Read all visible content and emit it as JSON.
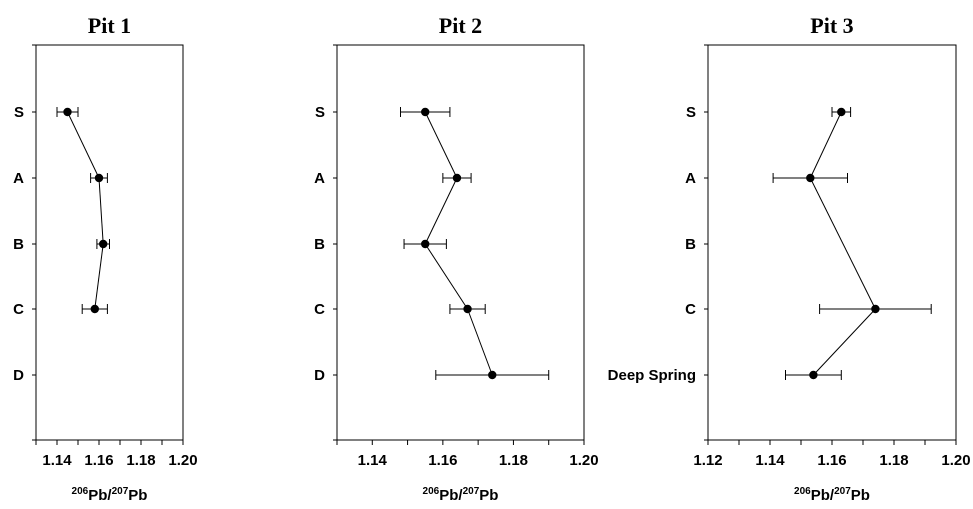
{
  "chart_data": [
    {
      "type": "scatter",
      "title": "Pit 1",
      "xlabel": {
        "sup1": "206",
        "base1": "Pb/",
        "sup2": "207",
        "base2": "Pb"
      },
      "xlim": [
        1.13,
        1.2
      ],
      "xticks": [
        "1.14",
        "1.16",
        "1.18",
        "1.20"
      ],
      "categories": [
        "S",
        "A",
        "B",
        "C",
        "D"
      ],
      "series": [
        {
          "points": [
            {
              "category": "S",
              "x": 1.145,
              "err": 0.005
            },
            {
              "category": "A",
              "x": 1.16,
              "err": 0.004
            },
            {
              "category": "B",
              "x": 1.162,
              "err": 0.003
            },
            {
              "category": "C",
              "x": 1.158,
              "err": 0.006
            }
          ]
        }
      ]
    },
    {
      "type": "scatter",
      "title": "Pit 2",
      "xlabel": {
        "sup1": "206",
        "base1": "Pb/",
        "sup2": "207",
        "base2": "Pb"
      },
      "xlim": [
        1.13,
        1.2
      ],
      "xticks": [
        "1.14",
        "1.16",
        "1.18",
        "1.20"
      ],
      "categories": [
        "S",
        "A",
        "B",
        "C",
        "D"
      ],
      "series": [
        {
          "points": [
            {
              "category": "S",
              "x": 1.155,
              "err": 0.007
            },
            {
              "category": "A",
              "x": 1.164,
              "err": 0.004
            },
            {
              "category": "B",
              "x": 1.155,
              "err": 0.006
            },
            {
              "category": "C",
              "x": 1.167,
              "err": 0.005
            },
            {
              "category": "D",
              "x": 1.174,
              "err": 0.016
            }
          ]
        }
      ]
    },
    {
      "type": "scatter",
      "title": "Pit 3",
      "xlabel": {
        "sup1": "206",
        "base1": "Pb/",
        "sup2": "207",
        "base2": "Pb"
      },
      "xlim": [
        1.12,
        1.2
      ],
      "xticks": [
        "1.12",
        "1.14",
        "1.16",
        "1.18",
        "1.20"
      ],
      "categories": [
        "S",
        "A",
        "B",
        "C",
        "Deep Spring"
      ],
      "series": [
        {
          "points": [
            {
              "category": "S",
              "x": 1.163,
              "err": 0.003
            },
            {
              "category": "A",
              "x": 1.153,
              "err": 0.012
            },
            {
              "category": "C",
              "x": 1.174,
              "err": 0.018
            },
            {
              "category": "Deep Spring",
              "x": 1.154,
              "err": 0.009
            }
          ]
        }
      ]
    }
  ]
}
